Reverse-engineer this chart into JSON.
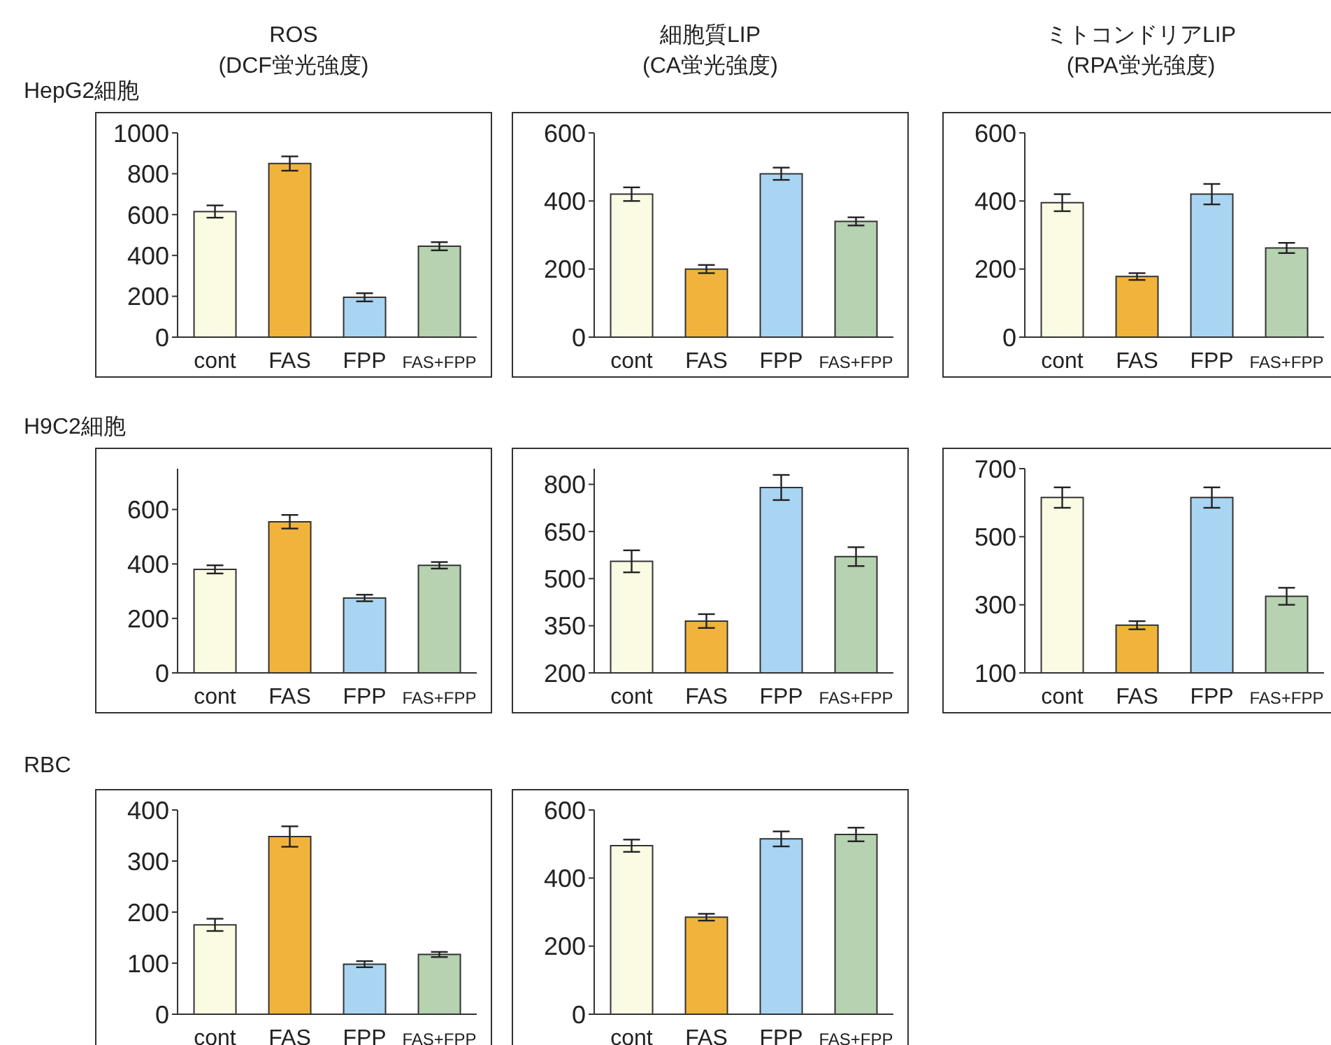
{
  "chart_data": [
    {
      "type": "bar",
      "title": "ROS\n(DCF蛍光強度)",
      "annotations": [
        "HepG2細胞"
      ],
      "categories": [
        "cont",
        "FAS",
        "FPP",
        "FAS+FPP"
      ],
      "values": [
        615,
        850,
        195,
        445
      ],
      "errors": [
        30,
        35,
        20,
        20
      ],
      "colors": [
        "#fbfbe4",
        "#f0b43c",
        "#a9d5f2",
        "#b6d2b0"
      ],
      "ylim": [
        0,
        1000
      ],
      "yticks": [
        0,
        200,
        400,
        600,
        800,
        1000
      ],
      "legend": false,
      "grid": false
    },
    {
      "type": "bar",
      "title": "細胞質LIP\n(CA蛍光強度)",
      "categories": [
        "cont",
        "FAS",
        "FPP",
        "FAS+FPP"
      ],
      "values": [
        420,
        200,
        480,
        340
      ],
      "errors": [
        20,
        12,
        18,
        12
      ],
      "colors": [
        "#fbfbe4",
        "#f0b43c",
        "#a9d5f2",
        "#b6d2b0"
      ],
      "ylim": [
        0,
        600
      ],
      "yticks": [
        0,
        200,
        400,
        600
      ],
      "legend": false,
      "grid": false
    },
    {
      "type": "bar",
      "title": "ミトコンドリアLIP\n(RPA蛍光強度)",
      "categories": [
        "cont",
        "FAS",
        "FPP",
        "FAS+FPP"
      ],
      "values": [
        395,
        178,
        420,
        262
      ],
      "errors": [
        25,
        10,
        30,
        15
      ],
      "colors": [
        "#fbfbe4",
        "#f0b43c",
        "#a9d5f2",
        "#b6d2b0"
      ],
      "ylim": [
        0,
        600
      ],
      "yticks": [
        0,
        200,
        400,
        600
      ],
      "legend": false,
      "grid": false
    },
    {
      "type": "bar",
      "annotations": [
        "H9C2細胞"
      ],
      "categories": [
        "cont",
        "FAS",
        "FPP",
        "FAS+FPP"
      ],
      "values": [
        380,
        555,
        275,
        395
      ],
      "errors": [
        15,
        25,
        12,
        12
      ],
      "colors": [
        "#fbfbe4",
        "#f0b43c",
        "#a9d5f2",
        "#b6d2b0"
      ],
      "ylim": [
        0,
        750
      ],
      "yticks": [
        0,
        200,
        400,
        600
      ],
      "legend": false,
      "grid": false
    },
    {
      "type": "bar",
      "categories": [
        "cont",
        "FAS",
        "FPP",
        "FAS+FPP"
      ],
      "values": [
        555,
        365,
        790,
        570
      ],
      "errors": [
        35,
        22,
        40,
        30
      ],
      "colors": [
        "#fbfbe4",
        "#f0b43c",
        "#a9d5f2",
        "#b6d2b0"
      ],
      "ylim": [
        200,
        850
      ],
      "yticks": [
        200,
        350,
        500,
        650,
        800
      ],
      "legend": false,
      "grid": false
    },
    {
      "type": "bar",
      "categories": [
        "cont",
        "FAS",
        "FPP",
        "FAS+FPP"
      ],
      "values": [
        615,
        240,
        615,
        325
      ],
      "errors": [
        30,
        12,
        30,
        25
      ],
      "colors": [
        "#fbfbe4",
        "#f0b43c",
        "#a9d5f2",
        "#b6d2b0"
      ],
      "ylim": [
        100,
        700
      ],
      "yticks": [
        100,
        300,
        500,
        700
      ],
      "legend": false,
      "grid": false
    },
    {
      "type": "bar",
      "annotations": [
        "RBC"
      ],
      "categories": [
        "cont",
        "FAS",
        "FPP",
        "FAS+FPP"
      ],
      "values": [
        175,
        348,
        98,
        117
      ],
      "errors": [
        12,
        20,
        6,
        5
      ],
      "colors": [
        "#fbfbe4",
        "#f0b43c",
        "#a9d5f2",
        "#b6d2b0"
      ],
      "ylim": [
        0,
        400
      ],
      "yticks": [
        0,
        100,
        200,
        300,
        400
      ],
      "legend": false,
      "grid": false
    },
    {
      "type": "bar",
      "categories": [
        "cont",
        "FAS",
        "FPP",
        "FAS+FPP"
      ],
      "values": [
        495,
        285,
        515,
        528
      ],
      "errors": [
        18,
        10,
        22,
        20
      ],
      "colors": [
        "#fbfbe4",
        "#f0b43c",
        "#a9d5f2",
        "#b6d2b0"
      ],
      "ylim": [
        0,
        600
      ],
      "yticks": [
        0,
        200,
        400,
        600
      ],
      "legend": false,
      "grid": false
    }
  ]
}
